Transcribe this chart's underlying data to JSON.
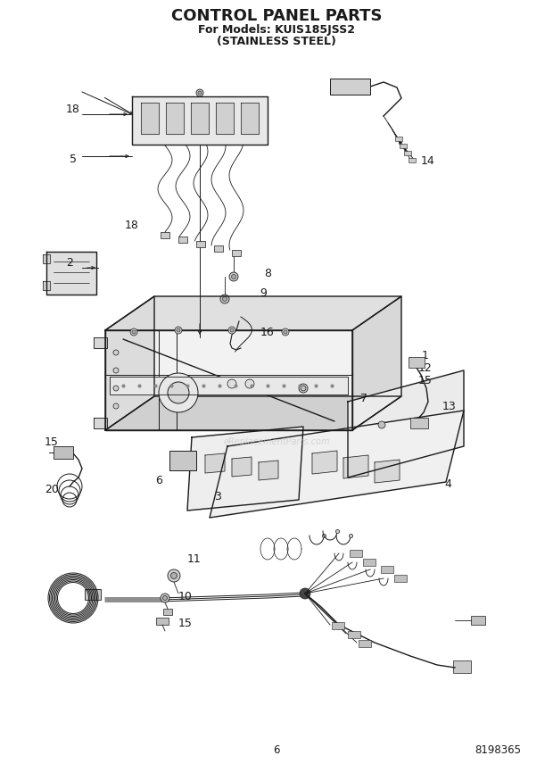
{
  "title_line1": "CONTROL PANEL PARTS",
  "title_line2": "For Models: KUIS185JSS2",
  "title_line3": "(STAINLESS STEEL)",
  "page_number": "6",
  "part_number": "8198365",
  "watermark": "eReplacementParts.com",
  "bg": "#ffffff",
  "lc": "#1a1a1a",
  "title_fontsize": 13,
  "subtitle_fontsize": 9,
  "label_fontsize": 9,
  "footer_fontsize": 8.5
}
